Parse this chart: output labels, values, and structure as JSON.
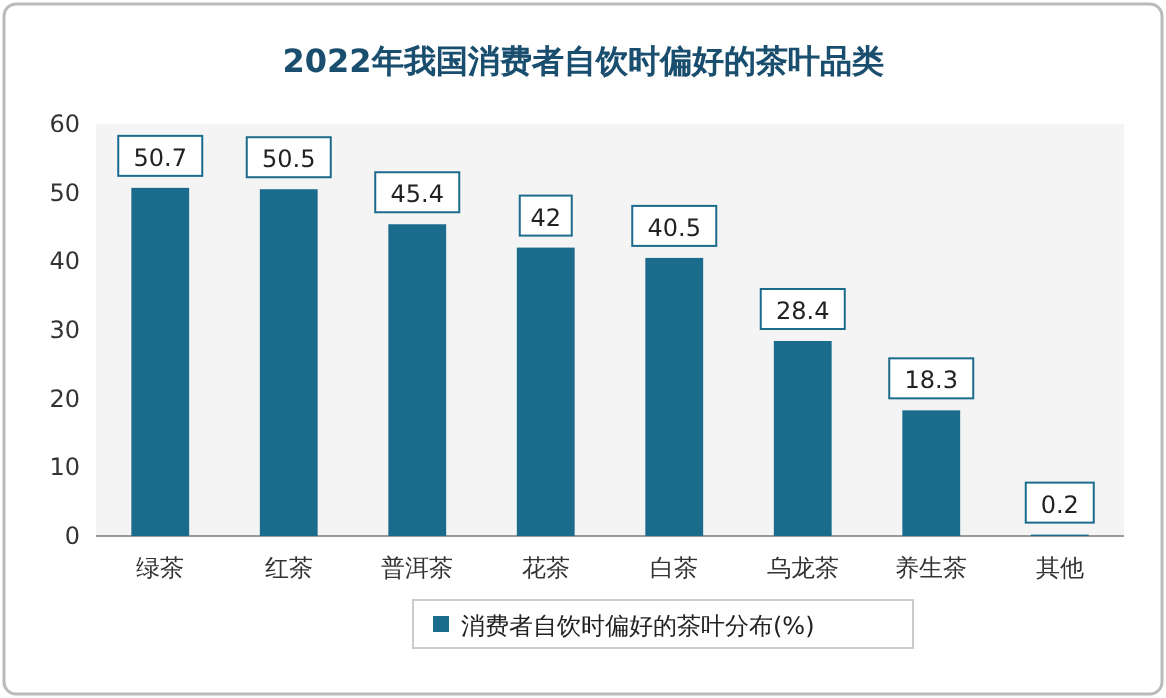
{
  "chart_data": {
    "type": "bar",
    "title": "2022年我国消费者自饮时偏好的茶叶品类",
    "categories": [
      "绿茶",
      "红茶",
      "普洱茶",
      "花茶",
      "白茶",
      "乌龙茶",
      "养生茶",
      "其他"
    ],
    "series": [
      {
        "name": "消费者自饮时偏好的茶叶分布(%)",
        "color": "#1b6b8c",
        "values": [
          50.7,
          50.5,
          45.4,
          42,
          40.5,
          28.4,
          18.3,
          0.2
        ]
      }
    ],
    "ylim": [
      0,
      60
    ],
    "yticks": [
      0,
      10,
      20,
      30,
      40,
      50,
      60
    ],
    "data_labels": true,
    "legend": "bottom",
    "grid": false
  }
}
